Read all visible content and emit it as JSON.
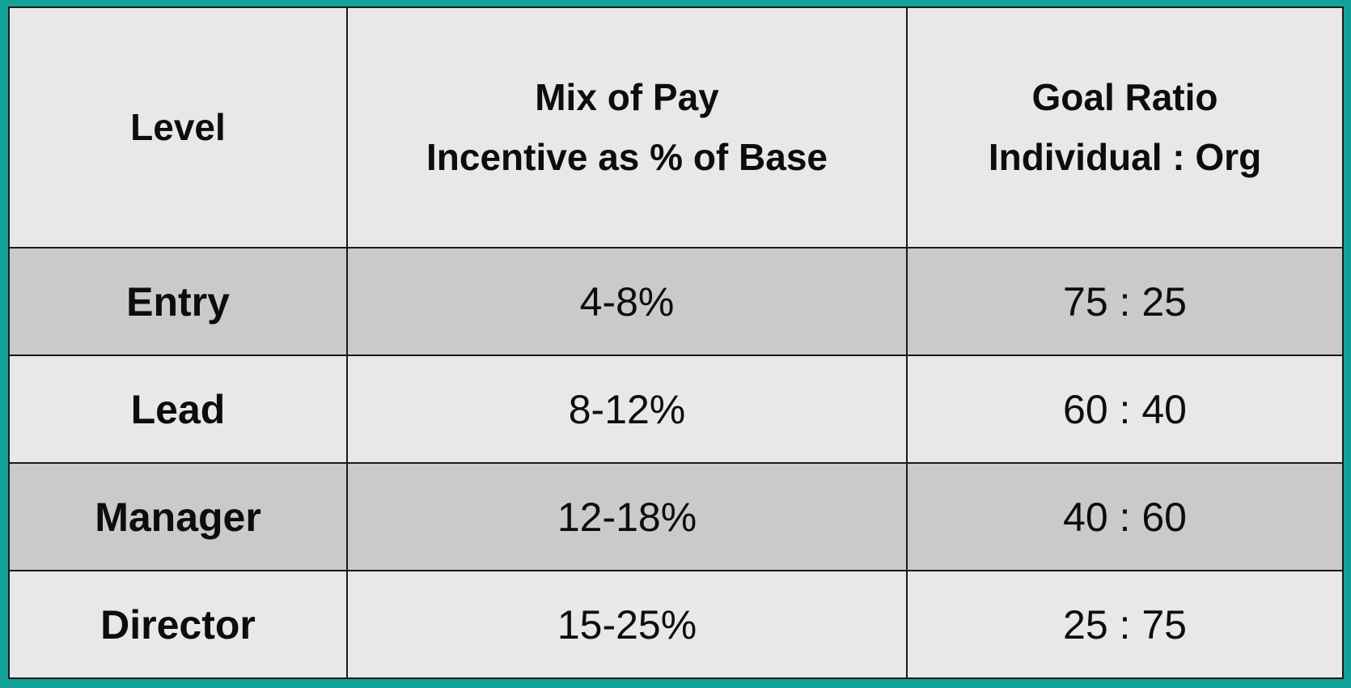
{
  "table": {
    "columns": [
      {
        "lines": [
          "Level"
        ]
      },
      {
        "lines": [
          "Mix of Pay",
          "Incentive as % of Base"
        ]
      },
      {
        "lines": [
          "Goal Ratio",
          "Individual : Org"
        ]
      }
    ],
    "rows": [
      [
        "Entry",
        "4-8%",
        "75 : 25"
      ],
      [
        "Lead",
        "8-12%",
        "60 : 40"
      ],
      [
        "Manager",
        "12-18%",
        "40 : 60"
      ],
      [
        "Director",
        "15-25%",
        "25 : 75"
      ]
    ]
  }
}
